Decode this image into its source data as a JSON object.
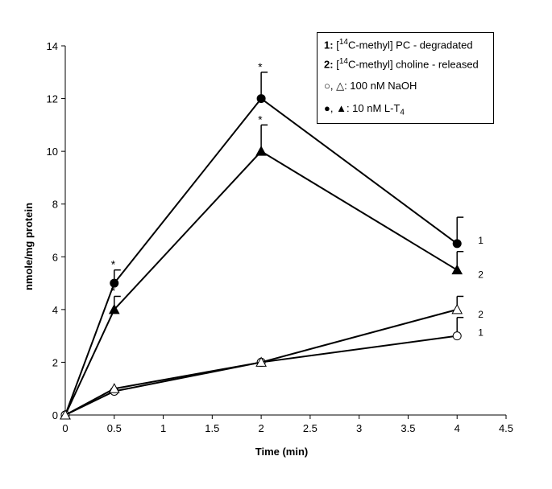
{
  "chart_data": {
    "type": "line",
    "xlabel": "Time (min)",
    "ylabel": "nmole/mg protein",
    "xlim": [
      0,
      4.5
    ],
    "ylim": [
      0,
      14
    ],
    "xticks": [
      "0",
      "0.5",
      "1",
      "1.5",
      "2",
      "2.5",
      "3",
      "3.5",
      "4",
      "4.5"
    ],
    "yticks": [
      "0",
      "2",
      "4",
      "6",
      "8",
      "10",
      "12",
      "14"
    ],
    "x": [
      0,
      0.5,
      2,
      4
    ],
    "series": [
      {
        "name": "PC degradated, 10 nM L-T4",
        "marker": "filled-circle",
        "values": [
          0,
          5,
          12,
          6.5
        ],
        "errors": [
          0,
          0.5,
          1,
          1
        ],
        "label": "1",
        "sig": [
          false,
          true,
          true,
          false
        ]
      },
      {
        "name": "choline released, 10 nM L-T4",
        "marker": "filled-triangle",
        "values": [
          0,
          4,
          10,
          5.5
        ],
        "errors": [
          0,
          0.5,
          1,
          0.7
        ],
        "label": "2",
        "sig": [
          false,
          true,
          true,
          false
        ]
      },
      {
        "name": "PC degradated, 100 nM NaOH",
        "marker": "open-circle",
        "values": [
          0,
          0.9,
          2,
          3
        ],
        "errors": [
          0,
          0,
          0,
          0.7
        ],
        "label": "1",
        "sig": [
          false,
          false,
          false,
          false
        ]
      },
      {
        "name": "choline released, 100 nM NaOH",
        "marker": "open-triangle",
        "values": [
          0,
          1,
          2,
          4
        ],
        "errors": [
          0,
          0,
          0,
          0.5
        ],
        "label": "2",
        "sig": [
          false,
          false,
          false,
          false
        ]
      }
    ],
    "significance_mark": "*",
    "legend": {
      "placement": "top-right",
      "line1_num": "1:",
      "line1_pre": "[",
      "line1_sup": "14",
      "line1_text": "C-methyl] PC - degradated",
      "line2_num": "2:",
      "line2_pre": "[",
      "line2_sup": "14",
      "line2_text": "C-methyl] choline - released",
      "line3_sym": "○, △",
      "line3_text": ": 100 nM NaOH",
      "line4_sym": "●, ▲",
      "line4_text": ": 10 nM L-T",
      "line4_sub": "4"
    }
  }
}
